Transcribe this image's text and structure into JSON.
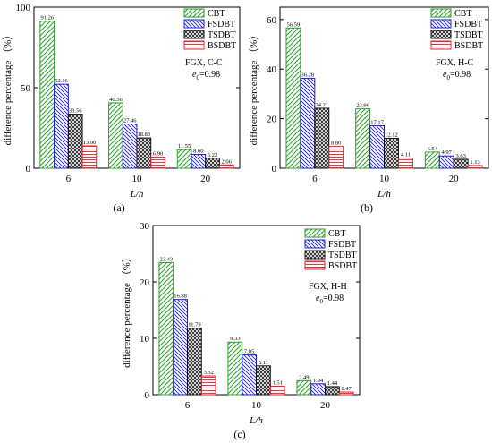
{
  "chart_data": [
    {
      "type": "bar",
      "panel_label": "(a)",
      "ylabel": "difference percentage （%）",
      "xlabel": "L/h",
      "categories": [
        "6",
        "10",
        "20"
      ],
      "ylim": [
        0,
        100
      ],
      "yticks": [
        0,
        50,
        100
      ],
      "annotation": {
        "line1": "FGX, C-C",
        "line2_prefix": "e",
        "line2_sub": "0",
        "line2_suffix": "=0.98"
      },
      "series": [
        {
          "name": "CBT",
          "values": [
            91.26,
            40.56,
            11.55
          ],
          "labels": [
            "91.26",
            "40.56",
            "11.55"
          ]
        },
        {
          "name": "FSDBT",
          "values": [
            52.16,
            27.46,
            8.6
          ],
          "labels": [
            "52.16",
            "27.46",
            "8.60"
          ]
        },
        {
          "name": "TSDBT",
          "values": [
            33.56,
            18.83,
            6.22
          ],
          "labels": [
            "33.56",
            "18.83",
            "6.22"
          ]
        },
        {
          "name": "BSDBT",
          "values": [
            13.9,
            6.9,
            2.06
          ],
          "labels": [
            "13.90",
            "6.90",
            "2.06"
          ]
        }
      ]
    },
    {
      "type": "bar",
      "panel_label": "(b)",
      "ylabel": "difference percentage （%）",
      "xlabel": "L/h",
      "categories": [
        "6",
        "10",
        "20"
      ],
      "ylim": [
        0,
        65
      ],
      "yticks": [
        0,
        20,
        40,
        60
      ],
      "annotation": {
        "line1": "FGX, H-C",
        "line2_prefix": "e",
        "line2_sub": "0",
        "line2_suffix": "=0.98"
      },
      "series": [
        {
          "name": "CBT",
          "values": [
            56.59,
            23.96,
            6.54
          ],
          "labels": [
            "56.59",
            "23.96",
            "6.54"
          ]
        },
        {
          "name": "FSDBT",
          "values": [
            36.28,
            17.17,
            4.97
          ],
          "labels": [
            "36.28",
            "17.17",
            "4.97"
          ]
        },
        {
          "name": "TSDBT",
          "values": [
            24.21,
            12.12,
            3.63
          ],
          "labels": [
            "24.21",
            "12.12",
            "3.63"
          ]
        },
        {
          "name": "BSDBT",
          "values": [
            8.8,
            4.11,
            1.13
          ],
          "labels": [
            "8.80",
            "4.11",
            "1.13"
          ]
        }
      ]
    },
    {
      "type": "bar",
      "panel_label": "(c)",
      "ylabel": "difference percentage （%）",
      "xlabel": "L/h",
      "categories": [
        "6",
        "10",
        "20"
      ],
      "ylim": [
        0,
        30
      ],
      "yticks": [
        0,
        10,
        20,
        30
      ],
      "annotation": {
        "line1": "FGX, H-H",
        "line2_prefix": "e",
        "line2_sub": "0",
        "line2_suffix": "=0.98"
      },
      "series": [
        {
          "name": "CBT",
          "values": [
            23.43,
            9.33,
            2.49
          ],
          "labels": [
            "23.43",
            "9.33",
            "2.49"
          ]
        },
        {
          "name": "FSDBT",
          "values": [
            16.88,
            7.05,
            1.94
          ],
          "labels": [
            "16.88",
            "7.05",
            "1.94"
          ]
        },
        {
          "name": "TSDBT",
          "values": [
            11.79,
            5.11,
            1.44
          ],
          "labels": [
            "11.79",
            "5.11",
            "1.44"
          ]
        },
        {
          "name": "BSDBT",
          "values": [
            3.32,
            1.51,
            0.47
          ],
          "labels": [
            "3.32",
            "1.51",
            "0.47"
          ]
        }
      ]
    }
  ],
  "colors": {
    "CBT": "#2aa02a",
    "FSDBT": "#1f1fe0",
    "TSDBT": "#111111",
    "BSDBT": "#e8202a"
  }
}
